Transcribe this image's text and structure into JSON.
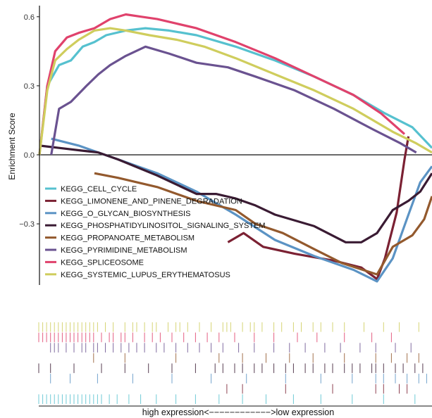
{
  "chart_data": {
    "type": "line",
    "ylabel": "Enrichment Score",
    "ylim": [
      -0.55,
      0.65
    ],
    "yticks": [
      {
        "value": 0.6,
        "label": "0.6"
      },
      {
        "value": 0.3,
        "label": "0.3"
      },
      {
        "value": 0.0,
        "label": "0.0"
      },
      {
        "value": -0.3,
        "label": "−0.3"
      }
    ],
    "x_axis_caption": "high expression<−−−−−−−−−−−−>low expression",
    "legend_position": "bottom-left",
    "series": [
      {
        "name": "KEGG_CELL_CYCLE",
        "color": "#56c1cf",
        "points": [
          [
            0,
            0
          ],
          [
            2,
            0.3
          ],
          [
            5,
            0.39
          ],
          [
            8,
            0.41
          ],
          [
            11,
            0.47
          ],
          [
            14,
            0.49
          ],
          [
            17,
            0.52
          ],
          [
            22,
            0.54
          ],
          [
            27,
            0.55
          ],
          [
            33,
            0.54
          ],
          [
            40,
            0.52
          ],
          [
            50,
            0.47
          ],
          [
            60,
            0.41
          ],
          [
            70,
            0.34
          ],
          [
            80,
            0.26
          ],
          [
            88,
            0.18
          ],
          [
            95,
            0.12
          ],
          [
            100,
            0.03
          ]
        ]
      },
      {
        "name": "KEGG_LIMONENE_AND_PINENE_DEGRADATION",
        "color": "#7b2133",
        "points": [
          [
            48,
            -0.38
          ],
          [
            52,
            -0.34
          ],
          [
            57,
            -0.4
          ],
          [
            65,
            -0.43
          ],
          [
            75,
            -0.46
          ],
          [
            82,
            -0.49
          ],
          [
            86,
            -0.54
          ],
          [
            88,
            -0.45
          ],
          [
            91,
            -0.25
          ],
          [
            93,
            -0.02
          ],
          [
            94,
            0.08
          ]
        ]
      },
      {
        "name": "KEGG_O_GLYCAN_BIOSYNTHESIS",
        "color": "#5b93c4",
        "points": [
          [
            3,
            0.07
          ],
          [
            10,
            0.04
          ],
          [
            20,
            -0.02
          ],
          [
            30,
            -0.08
          ],
          [
            40,
            -0.16
          ],
          [
            50,
            -0.26
          ],
          [
            60,
            -0.37
          ],
          [
            70,
            -0.44
          ],
          [
            80,
            -0.5
          ],
          [
            86,
            -0.55
          ],
          [
            90,
            -0.45
          ],
          [
            94,
            -0.26
          ],
          [
            97,
            -0.12
          ],
          [
            100,
            -0.05
          ]
        ]
      },
      {
        "name": "KEGG_PHOSPHATIDYLINOSITOL_SIGNALING_SYSTEM",
        "color": "#3a1b33",
        "points": [
          [
            0,
            0.04
          ],
          [
            5,
            0.03
          ],
          [
            10,
            0.02
          ],
          [
            15,
            0.01
          ],
          [
            20,
            -0.02
          ],
          [
            30,
            -0.09
          ],
          [
            40,
            -0.17
          ],
          [
            45,
            -0.17
          ],
          [
            50,
            -0.19
          ],
          [
            55,
            -0.22
          ],
          [
            60,
            -0.26
          ],
          [
            70,
            -0.31
          ],
          [
            78,
            -0.38
          ],
          [
            82,
            -0.38
          ],
          [
            86,
            -0.34
          ],
          [
            90,
            -0.24
          ],
          [
            94,
            -0.2
          ],
          [
            97,
            -0.16
          ],
          [
            100,
            -0.08
          ]
        ]
      },
      {
        "name": "KEGG_PROPANOATE_METABOLISM",
        "color": "#93592d",
        "points": [
          [
            14,
            -0.08
          ],
          [
            20,
            -0.1
          ],
          [
            30,
            -0.14
          ],
          [
            40,
            -0.2
          ],
          [
            50,
            -0.24
          ],
          [
            55,
            -0.3
          ],
          [
            62,
            -0.34
          ],
          [
            70,
            -0.41
          ],
          [
            77,
            -0.47
          ],
          [
            86,
            -0.52
          ],
          [
            90,
            -0.4
          ],
          [
            95,
            -0.35
          ],
          [
            98,
            -0.28
          ],
          [
            100,
            -0.18
          ]
        ]
      },
      {
        "name": "KEGG_PYRIMIDINE_METABOLISM",
        "color": "#6a5290",
        "points": [
          [
            3,
            0.0
          ],
          [
            5,
            0.2
          ],
          [
            8,
            0.23
          ],
          [
            12,
            0.3
          ],
          [
            15,
            0.35
          ],
          [
            18,
            0.39
          ],
          [
            22,
            0.43
          ],
          [
            27,
            0.47
          ],
          [
            33,
            0.44
          ],
          [
            40,
            0.4
          ],
          [
            48,
            0.38
          ],
          [
            55,
            0.34
          ],
          [
            65,
            0.28
          ],
          [
            75,
            0.2
          ],
          [
            85,
            0.11
          ],
          [
            92,
            0.05
          ],
          [
            96,
            0.01
          ]
        ]
      },
      {
        "name": "KEGG_SPLICEOSOME",
        "color": "#e0426c",
        "points": [
          [
            0,
            0
          ],
          [
            2,
            0.3
          ],
          [
            4,
            0.45
          ],
          [
            7,
            0.51
          ],
          [
            10,
            0.53
          ],
          [
            14,
            0.55
          ],
          [
            18,
            0.59
          ],
          [
            22,
            0.61
          ],
          [
            26,
            0.6
          ],
          [
            30,
            0.59
          ],
          [
            35,
            0.57
          ],
          [
            40,
            0.55
          ],
          [
            50,
            0.49
          ],
          [
            60,
            0.42
          ],
          [
            70,
            0.34
          ],
          [
            80,
            0.26
          ],
          [
            87,
            0.18
          ],
          [
            93,
            0.09
          ]
        ]
      },
      {
        "name": "KEGG_SYSTEMIC_LUPUS_ERYTHEMATOSUS",
        "color": "#cfcd5d",
        "points": [
          [
            0,
            0
          ],
          [
            2,
            0.28
          ],
          [
            4,
            0.41
          ],
          [
            7,
            0.46
          ],
          [
            10,
            0.5
          ],
          [
            14,
            0.54
          ],
          [
            18,
            0.55
          ],
          [
            22,
            0.54
          ],
          [
            28,
            0.52
          ],
          [
            35,
            0.5
          ],
          [
            42,
            0.47
          ],
          [
            50,
            0.42
          ],
          [
            60,
            0.35
          ],
          [
            70,
            0.28
          ],
          [
            80,
            0.2
          ],
          [
            90,
            0.1
          ],
          [
            96,
            0.05
          ],
          [
            100,
            0.01
          ]
        ]
      }
    ],
    "rug_rows": [
      {
        "series": "KEGG_SYSTEMIC_LUPUS_ERYTHEMATOSUS",
        "hits": [
          0,
          1,
          2,
          3,
          4,
          5,
          6,
          7,
          8,
          9,
          10,
          11,
          12,
          13,
          14,
          15,
          17,
          19,
          22,
          24,
          25,
          27,
          29,
          30,
          33,
          35,
          36,
          38,
          41,
          44,
          47,
          48,
          49,
          52,
          54,
          55,
          57,
          60,
          62,
          65,
          67,
          70,
          72,
          75,
          78,
          83,
          88,
          92,
          97
        ]
      },
      {
        "series": "KEGG_SPLICEOSOME",
        "hits": [
          0,
          1,
          2,
          3,
          4,
          5,
          6,
          7,
          8,
          9,
          10,
          11,
          12,
          13,
          14,
          16,
          18,
          19,
          21,
          22,
          24,
          27,
          29,
          31,
          34,
          37,
          40,
          43,
          46,
          50,
          55,
          60,
          66,
          71,
          78,
          85,
          90
        ]
      },
      {
        "series": "KEGG_PYRIMIDINE_METABOLISM",
        "hits": [
          3,
          4,
          5,
          7,
          9,
          11,
          12,
          14,
          15,
          17,
          19,
          21,
          23,
          25,
          27,
          30,
          32,
          35,
          38,
          41,
          44,
          47,
          51,
          55,
          60,
          64,
          68,
          73,
          77,
          82,
          86,
          91,
          95
        ]
      },
      {
        "series": "KEGG_PROPANOATE_METABOLISM",
        "hits": [
          14,
          22,
          35,
          46,
          52,
          58,
          64,
          70,
          78,
          86,
          90,
          94,
          97
        ]
      },
      {
        "series": "KEGG_PHOSPHATIDYLINOSITOL_SIGNALING_SYSTEM",
        "hits": [
          0,
          3,
          9,
          16,
          22,
          28,
          34,
          40,
          45,
          47,
          50,
          52,
          55,
          57,
          60,
          63,
          65,
          68,
          70,
          73,
          75,
          78,
          80,
          82,
          85,
          86,
          88,
          91,
          93,
          96,
          98
        ]
      },
      {
        "series": "KEGG_O_GLYCAN_BIOSYNTHESIS",
        "hits": [
          3,
          8,
          15,
          24,
          34,
          44,
          53,
          63,
          72,
          80,
          86,
          88,
          91,
          94,
          97,
          99
        ]
      },
      {
        "series": "KEGG_LIMONENE_AND_PINENE_DEGRADATION",
        "hits": [
          48,
          52,
          63,
          75,
          86,
          88,
          92,
          94
        ]
      },
      {
        "series": "KEGG_CELL_CYCLE",
        "hits": [
          0,
          1,
          2,
          3,
          4,
          5,
          6,
          7,
          8,
          9,
          10,
          11,
          12,
          13,
          14,
          15,
          16,
          18,
          20,
          23,
          26,
          30,
          35,
          40,
          46,
          52,
          58,
          65,
          72,
          80,
          88,
          96
        ]
      }
    ]
  }
}
